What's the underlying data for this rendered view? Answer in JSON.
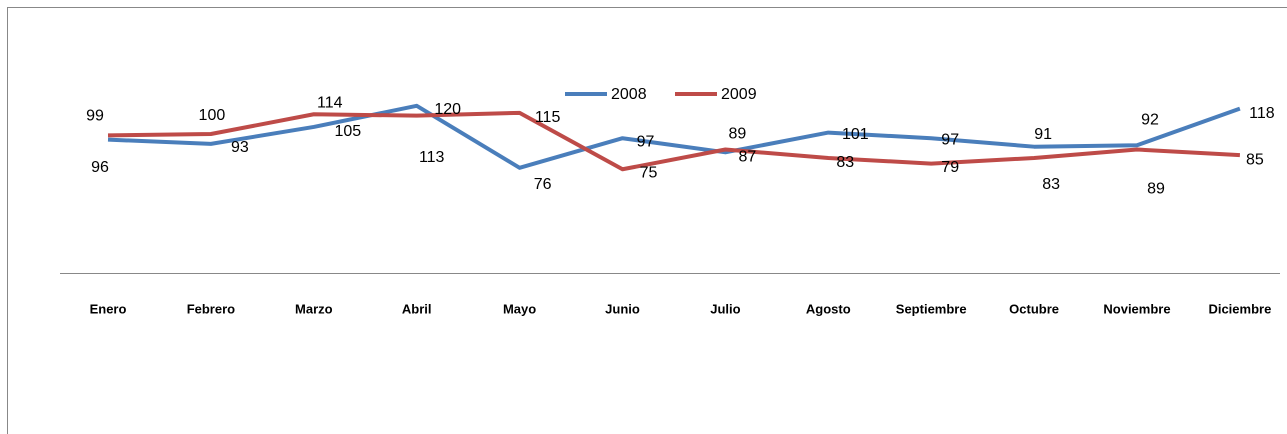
{
  "chart_data": {
    "type": "line",
    "categories": [
      "Enero",
      "Febrero",
      "Marzo",
      "Abril",
      "Mayo",
      "Junio",
      "Julio",
      "Agosto",
      "Septiembre",
      "Octubre",
      "Noviembre",
      "Diciembre"
    ],
    "series": [
      {
        "name": "2008",
        "color": "#4a7ebb",
        "values": [
          96,
          93,
          105,
          120,
          76,
          97,
          87,
          101,
          97,
          91,
          92,
          118
        ]
      },
      {
        "name": "2009",
        "color": "#be4b48",
        "values": [
          99,
          100,
          114,
          113,
          115,
          75,
          89,
          83,
          79,
          83,
          89,
          85
        ]
      }
    ],
    "ylim": [
      0,
      140
    ],
    "legend": "top"
  }
}
